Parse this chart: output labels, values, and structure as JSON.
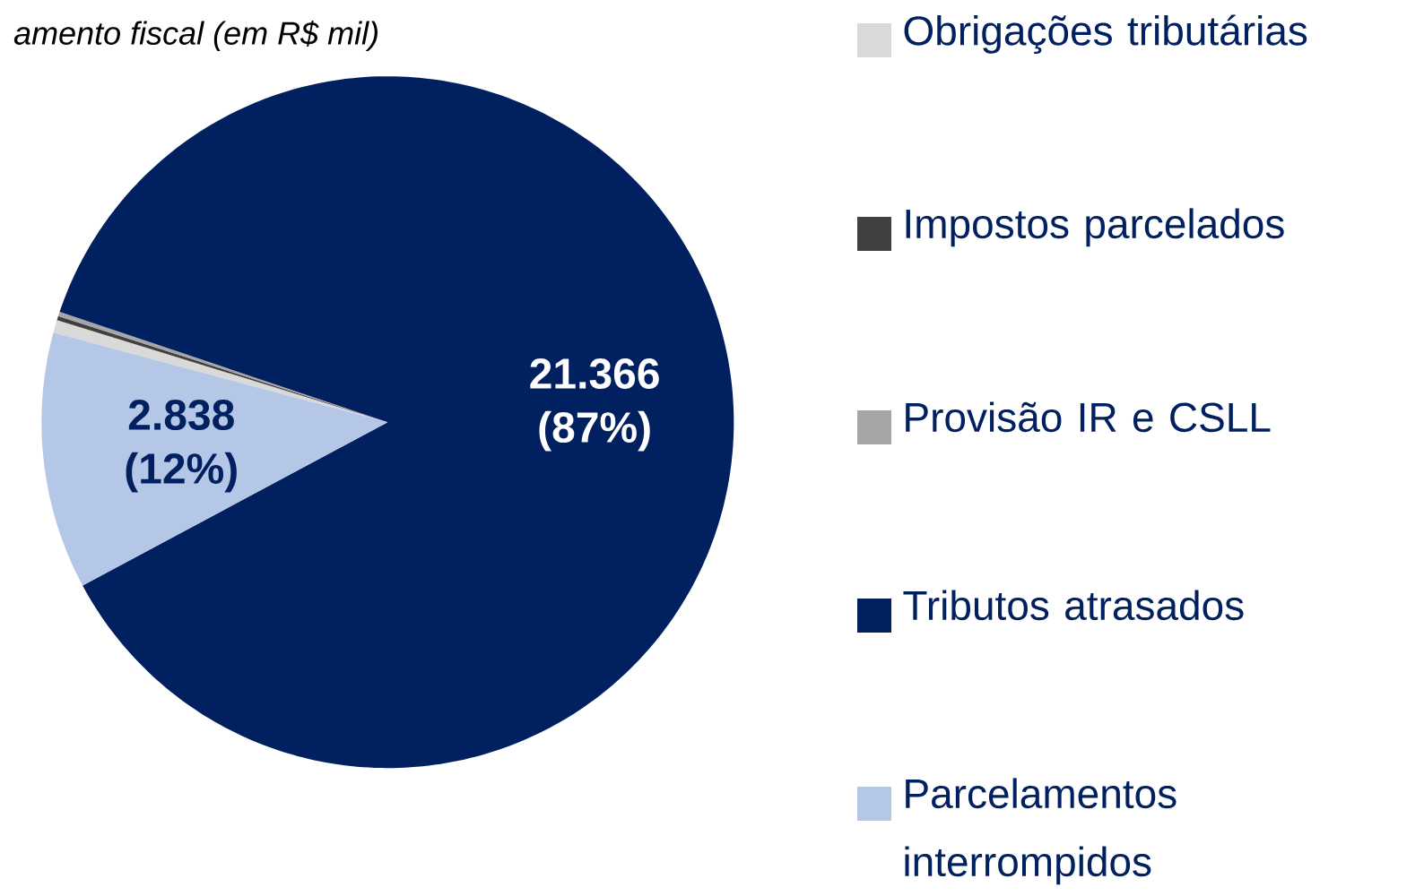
{
  "chart_data": {
    "type": "pie",
    "title": "amento fiscal (em R$ mil)",
    "categories": [
      "Obrigações tributárias",
      "Impostos parcelados",
      "Provisão IR e CSLL",
      "Tributos atrasados",
      "Parcelamentos interrompidos"
    ],
    "values": [
      0.6,
      0.2,
      0.2,
      87,
      12
    ],
    "colors": [
      "#d9d9d9",
      "#404040",
      "#a6a6a6",
      "#002060",
      "#b4c7e7"
    ],
    "value_labels": [
      null,
      null,
      null,
      "21.366 (87%)",
      "2.838 (12%)"
    ],
    "legend": "right"
  }
}
